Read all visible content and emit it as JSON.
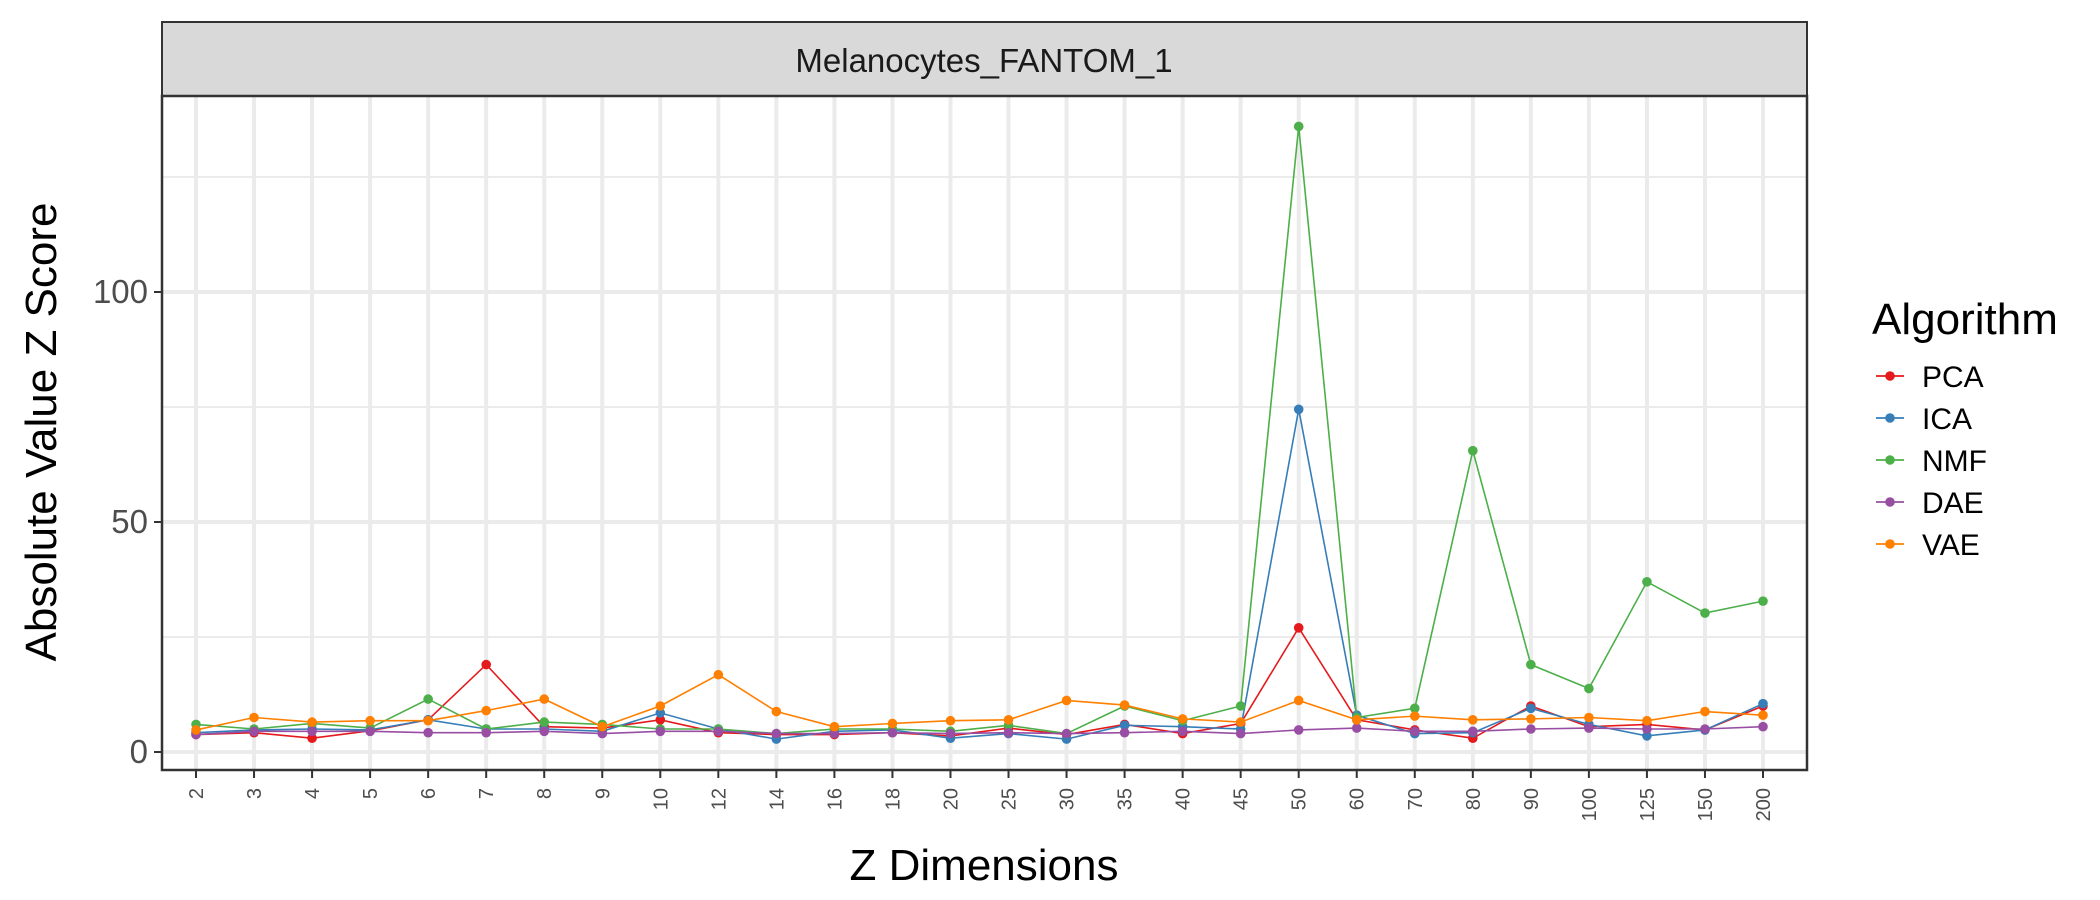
{
  "chart_data": {
    "type": "line",
    "facet_title": "Melanocytes_FANTOM_1",
    "xlabel": "Z Dimensions",
    "ylabel": "Absolute Value Z Score",
    "categories": [
      "2",
      "3",
      "4",
      "5",
      "6",
      "7",
      "8",
      "9",
      "10",
      "12",
      "14",
      "16",
      "18",
      "20",
      "25",
      "30",
      "35",
      "40",
      "45",
      "50",
      "60",
      "70",
      "80",
      "90",
      "100",
      "125",
      "150",
      "200"
    ],
    "yticks": [
      0,
      50,
      100
    ],
    "ylim": [
      -3,
      145
    ],
    "grid": true,
    "legend": {
      "title": "Algorithm",
      "position": "right"
    },
    "series": [
      {
        "name": "PCA",
        "color": "#E41A1C",
        "values": [
          3.8,
          4.2,
          3.0,
          4.6,
          7.0,
          19.0,
          5.5,
          5.2,
          7.0,
          4.2,
          3.8,
          3.8,
          4.2,
          3.5,
          5.2,
          3.8,
          6.0,
          4.0,
          6.2,
          27.0,
          7.0,
          4.8,
          3.0,
          10.0,
          5.5,
          6.0,
          4.8,
          10.0
        ]
      },
      {
        "name": "ICA",
        "color": "#377EB8",
        "values": [
          4.2,
          4.8,
          5.0,
          4.8,
          7.0,
          5.0,
          5.0,
          4.5,
          8.5,
          5.0,
          2.8,
          4.5,
          4.8,
          3.0,
          4.0,
          2.8,
          5.8,
          5.5,
          5.0,
          74.5,
          8.0,
          4.0,
          4.2,
          9.5,
          6.0,
          3.5,
          4.8,
          10.5
        ]
      },
      {
        "name": "NMF",
        "color": "#4DAF4A",
        "values": [
          6.0,
          5.0,
          6.2,
          5.2,
          11.5,
          5.0,
          6.5,
          6.0,
          5.0,
          5.0,
          4.0,
          5.0,
          5.0,
          4.5,
          5.8,
          4.0,
          10.0,
          6.8,
          10.0,
          136.0,
          7.5,
          9.5,
          65.5,
          19.0,
          13.8,
          37.0,
          30.2,
          32.8
        ]
      },
      {
        "name": "DAE",
        "color": "#984EA3",
        "values": [
          3.8,
          4.5,
          4.5,
          4.5,
          4.2,
          4.2,
          4.5,
          4.0,
          4.5,
          4.5,
          4.0,
          4.0,
          4.2,
          4.0,
          4.2,
          4.0,
          4.2,
          4.5,
          4.0,
          4.8,
          5.2,
          4.5,
          4.5,
          5.0,
          5.2,
          5.0,
          5.0,
          5.5
        ]
      },
      {
        "name": "VAE",
        "color": "#FF7F00",
        "values": [
          4.8,
          7.5,
          6.5,
          6.8,
          6.8,
          9.0,
          11.5,
          5.5,
          10.0,
          16.8,
          8.8,
          5.5,
          6.2,
          6.8,
          7.0,
          11.2,
          10.2,
          7.2,
          6.5,
          11.2,
          7.0,
          7.8,
          7.0,
          7.2,
          7.5,
          6.8,
          8.8,
          8.0
        ]
      }
    ]
  }
}
